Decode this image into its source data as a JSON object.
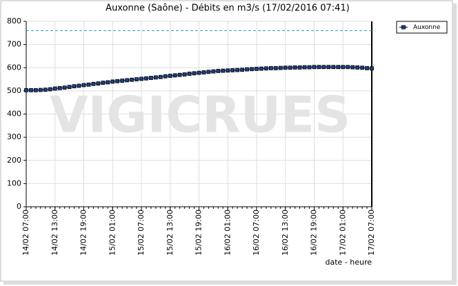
{
  "chart_data": {
    "type": "line",
    "title": "Auxonne (Saône) - Débits en m3/s (17/02/2016 07:41)",
    "watermark": "VIGICRUES",
    "x_label": "date - heure",
    "xlim": [
      0,
      72
    ],
    "xticks": [
      {
        "value": 0,
        "label": "14/02 07:00"
      },
      {
        "value": 6,
        "label": "14/02 13:00"
      },
      {
        "value": 12,
        "label": "14/02 19:00"
      },
      {
        "value": 18,
        "label": "15/02 01:00"
      },
      {
        "value": 24,
        "label": "15/02 07:00"
      },
      {
        "value": 30,
        "label": "15/02 13:00"
      },
      {
        "value": 36,
        "label": "15/02 19:00"
      },
      {
        "value": 42,
        "label": "16/02 01:00"
      },
      {
        "value": 48,
        "label": "16/02 07:00"
      },
      {
        "value": 54,
        "label": "16/02 13:00"
      },
      {
        "value": 60,
        "label": "16/02 19:00"
      },
      {
        "value": 66,
        "label": "17/02 01:00"
      },
      {
        "value": 72,
        "label": "17/02 07:00"
      }
    ],
    "ylim": [
      0,
      800
    ],
    "yticks": [
      0,
      100,
      200,
      300,
      400,
      500,
      600,
      700,
      800
    ],
    "grid": true,
    "legend": "top-right",
    "reference_line": 760,
    "reference_color": "#3399cc",
    "x": [
      0,
      1,
      2,
      3,
      4,
      5,
      6,
      7,
      8,
      9,
      10,
      11,
      12,
      13,
      14,
      15,
      16,
      17,
      18,
      19,
      20,
      21,
      22,
      23,
      24,
      25,
      26,
      27,
      28,
      29,
      30,
      31,
      32,
      33,
      34,
      35,
      36,
      37,
      38,
      39,
      40,
      41,
      42,
      43,
      44,
      45,
      46,
      47,
      48,
      49,
      50,
      51,
      52,
      53,
      54,
      55,
      56,
      57,
      58,
      59,
      60,
      61,
      62,
      63,
      64,
      65,
      66,
      67,
      68,
      69,
      70,
      71,
      72
    ],
    "series": [
      {
        "name": "Auxonne",
        "color": "#1f3f7f",
        "values": [
          503,
          503,
          503,
          504,
          505,
          507,
          510,
          512,
          514,
          517,
          520,
          522,
          525,
          527,
          530,
          532,
          535,
          537,
          540,
          542,
          544,
          546,
          548,
          550,
          552,
          554,
          556,
          558,
          560,
          563,
          565,
          567,
          569,
          571,
          574,
          576,
          578,
          580,
          582,
          584,
          586,
          587,
          588,
          589,
          590,
          591,
          593,
          594,
          595,
          596,
          597,
          598,
          598,
          599,
          600,
          600,
          601,
          601,
          602,
          602,
          603,
          603,
          603,
          603,
          603,
          603,
          603,
          603,
          602,
          601,
          600,
          598,
          597
        ]
      }
    ]
  }
}
